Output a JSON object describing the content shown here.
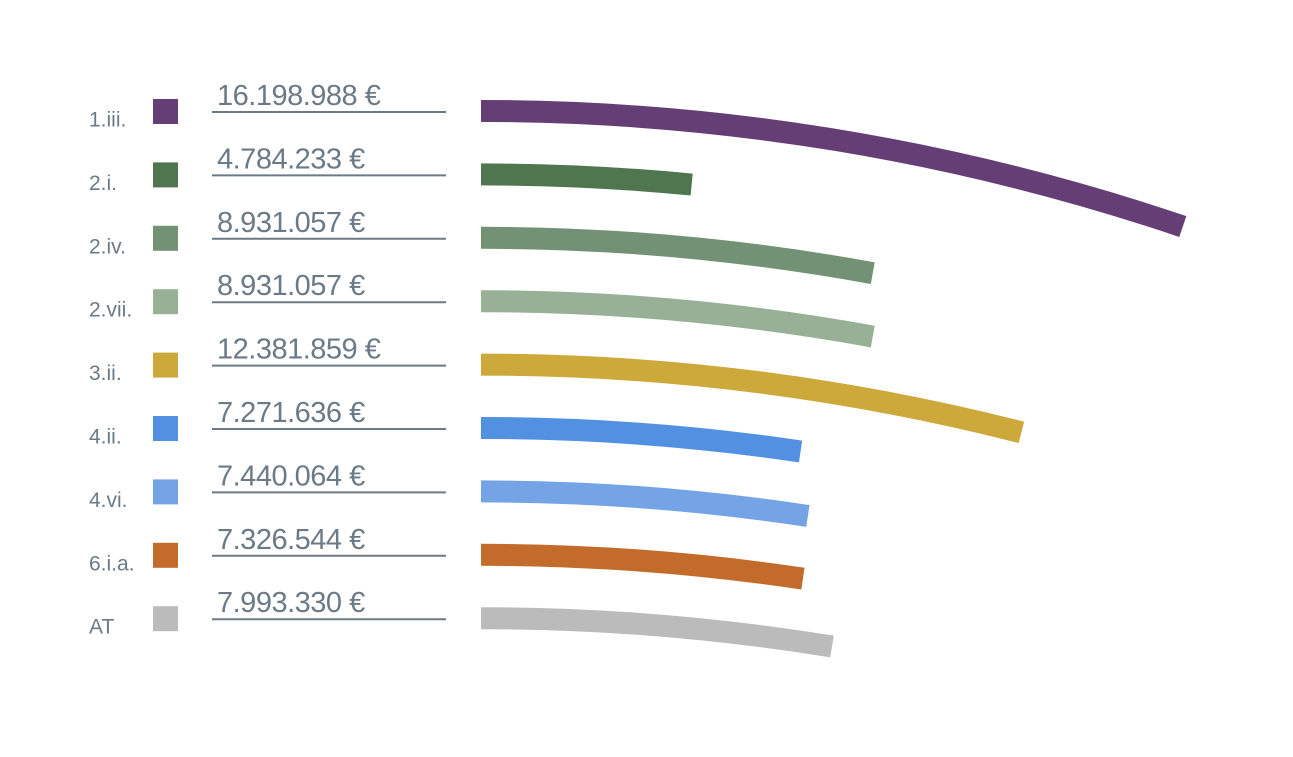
{
  "chart_data": {
    "type": "bar",
    "style": "curved-arc-bars",
    "orientation": "horizontal",
    "categories": [
      "1.iii.",
      "2.i.",
      "2.iv.",
      "2.vii.",
      "3.ii.",
      "4.ii.",
      "4.vi.",
      "6.i.a.",
      "AT"
    ],
    "value_labels": [
      "16.198.988 €",
      "4.784.233 €",
      "8.931.057 €",
      "8.931.057  €",
      "12.381.859 €",
      "7.271.636 €",
      "7.440.064 €",
      "7.326.544 €",
      "7.993.330 €"
    ],
    "values": [
      16198988,
      4784233,
      8931057,
      8931057,
      12381859,
      7271636,
      7440064,
      7326544,
      7993330
    ],
    "colors": [
      "#653e76",
      "#507650",
      "#739174",
      "#98b096",
      "#cda83b",
      "#5291e1",
      "#74a4e6",
      "#c36b2b",
      "#bbbbbb"
    ],
    "unit": "€",
    "xlim": [
      0,
      16198988
    ],
    "grid": false,
    "legend": "none",
    "title": "",
    "xlabel": "",
    "ylabel": ""
  }
}
